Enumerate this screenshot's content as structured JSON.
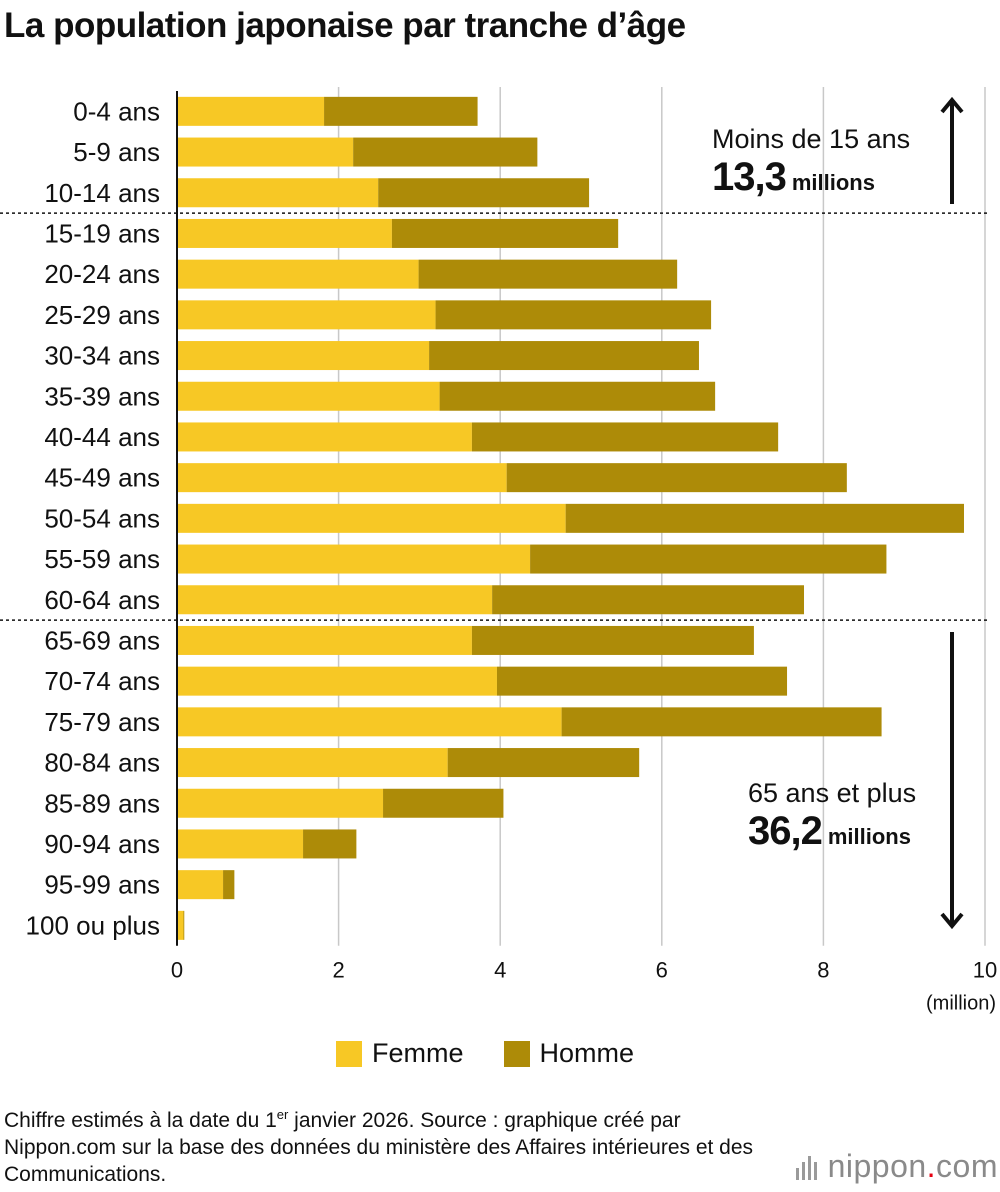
{
  "title": "La population japonaise par tranche d’âge",
  "chart_data": {
    "type": "bar",
    "orientation": "horizontal",
    "stacked": true,
    "categories": [
      "0-4 ans",
      "5-9 ans",
      "10-14 ans",
      "15-19 ans",
      "20-24 ans",
      "25-29 ans",
      "30-34 ans",
      "35-39 ans",
      "40-44 ans",
      "45-49 ans",
      "50-54 ans",
      "55-59 ans",
      "60-64 ans",
      "65-69 ans",
      "70-74 ans",
      "75-79 ans",
      "80-84 ans",
      "85-89 ans",
      "90-94 ans",
      "95-99 ans",
      "100 ou plus"
    ],
    "series": [
      {
        "name": "Femme",
        "color": "#f7c825",
        "values": [
          1.82,
          2.18,
          2.49,
          2.66,
          2.99,
          3.2,
          3.12,
          3.25,
          3.65,
          4.08,
          4.81,
          4.37,
          3.9,
          3.65,
          3.96,
          4.76,
          3.35,
          2.55,
          1.56,
          0.57,
          0.08
        ]
      },
      {
        "name": "Homme",
        "color": "#ad8b08",
        "values": [
          1.9,
          2.28,
          2.61,
          2.8,
          3.2,
          3.41,
          3.34,
          3.41,
          3.79,
          4.21,
          4.93,
          4.41,
          3.86,
          3.49,
          3.59,
          3.96,
          2.37,
          1.49,
          0.66,
          0.14,
          0.01
        ]
      }
    ],
    "xlim": [
      0,
      10
    ],
    "xticks": [
      0,
      2,
      4,
      6,
      8,
      10
    ],
    "xtick_labels": [
      "0",
      "2",
      "4",
      "6",
      "8",
      "10"
    ],
    "xlabel": "(million)",
    "grid": "vertical",
    "legend": {
      "position": "bottom-center",
      "labels": [
        "Femme",
        "Homme"
      ]
    },
    "dividers_after": [
      "10-14 ans",
      "60-64 ans"
    ],
    "annotations": [
      {
        "label": "Moins de 15 ans",
        "value": "13,3",
        "unit": "millions",
        "arrow": "up"
      },
      {
        "label": "65 ans et plus",
        "value": "36,2",
        "unit": "millions",
        "arrow": "down"
      }
    ]
  },
  "footnote": {
    "part1": "Chiffre estimés à la date du 1",
    "sup": "er",
    "part2": " janvier 2026. Source : graphique créé par Nippon.com sur la base des données du ministère des Affaires intérieures et des Communications."
  },
  "logo": {
    "brand": "nippon",
    "dot": ".",
    "tld": "com"
  },
  "colors": {
    "femme": "#f7c825",
    "homme": "#ad8b08",
    "grid": "#c8c8c8",
    "text": "#111111"
  }
}
